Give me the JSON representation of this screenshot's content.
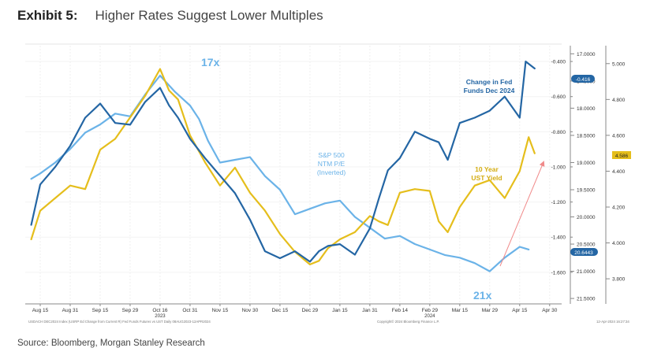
{
  "header": {
    "exhibit": "Exhibit 5:",
    "title": "Higher Rates Suggest Lower Multiples"
  },
  "footer": {
    "source": "Source: Bloomberg, Morgan Stanley Research"
  },
  "chart_data": {
    "type": "line",
    "x_ticks": [
      "Aug 15",
      "Aug 31",
      "Sep 15",
      "Sep 29",
      "Oct 16",
      "Oct 31",
      "Nov 15",
      "Nov 30",
      "Dec 15",
      "Dec 29",
      "Jan 15",
      "Jan 31",
      "Feb 14",
      "Feb 29",
      "Mar 15",
      "Mar 29",
      "Apr 15",
      "Apr 30"
    ],
    "year_labels": [
      {
        "text": "2023",
        "at": "Oct 16"
      },
      {
        "text": "2024",
        "at": "Feb 29"
      }
    ],
    "x_index_range": [
      -0.5,
      17.4
    ],
    "axes": {
      "fed": {
        "label": "Change in Fed Funds Dec 2024",
        "range": [
          -1.78,
          -0.31
        ],
        "ticks": [
          "-0.400",
          "-0.600",
          "-0.800",
          "-1.000",
          "-1.200",
          "-1.400",
          "-1.600"
        ],
        "tick_values": [
          -0.4,
          -0.6,
          -0.8,
          -1.0,
          -1.2,
          -1.4,
          -1.6
        ]
      },
      "pe": {
        "label": "S&P 500 NTM P/E (Inverted)",
        "range": [
          16.85,
          21.6
        ],
        "ticks": [
          "17.0000",
          "17.5000",
          "18.0000",
          "18.5000",
          "19.0000",
          "19.5000",
          "20.0000",
          "20.5000",
          "21.0000",
          "21.5000"
        ],
        "tick_values": [
          17.0,
          17.5,
          18.0,
          18.5,
          19.0,
          19.5,
          20.0,
          20.5,
          21.0,
          21.5
        ]
      },
      "yield": {
        "label": "10 Year UST Yield",
        "range": [
          3.66,
          5.1
        ],
        "ticks": [
          "5.000",
          "4.800",
          "4.600",
          "4.400",
          "4.200",
          "4.000",
          "3.800"
        ],
        "tick_values": [
          5.0,
          4.8,
          4.6,
          4.4,
          4.2,
          4.0,
          3.8
        ]
      }
    },
    "series": [
      {
        "name": "S&P 500 NTM P/E (Inverted)",
        "axis": "pe",
        "color": "#6BB3E8",
        "x": [
          -0.3,
          0,
          0.5,
          1,
          1.5,
          2,
          2.5,
          3,
          3.5,
          4,
          4.5,
          5,
          5.3,
          5.6,
          6,
          6.5,
          7,
          7.5,
          8,
          8.5,
          9,
          9.5,
          10,
          10.5,
          11,
          11.5,
          12,
          12.5,
          13,
          13.5,
          14,
          14.5,
          15,
          15.5,
          16,
          16.3
        ],
        "values": [
          19.3,
          19.2,
          19.0,
          18.75,
          18.45,
          18.3,
          18.1,
          18.15,
          17.75,
          17.4,
          17.7,
          17.95,
          18.2,
          18.6,
          19.0,
          18.95,
          18.9,
          19.25,
          19.5,
          19.95,
          19.85,
          19.75,
          19.7,
          20.0,
          20.2,
          20.4,
          20.35,
          20.5,
          20.6,
          20.7,
          20.75,
          20.85,
          21.0,
          20.75,
          20.55,
          20.6
        ]
      },
      {
        "name": "10 Year UST Yield",
        "axis": "yield",
        "color": "#E5BE1C",
        "x": [
          -0.3,
          0,
          0.5,
          1,
          1.5,
          2,
          2.5,
          3,
          3.5,
          4,
          4.3,
          4.6,
          5,
          5.5,
          6,
          6.5,
          7,
          7.5,
          8,
          8.5,
          9,
          9.3,
          9.6,
          10,
          10.5,
          11,
          11.3,
          11.6,
          12,
          12.5,
          13,
          13.3,
          13.6,
          14,
          14.5,
          15,
          15.5,
          16,
          16.3,
          16.5
        ],
        "values": [
          4.02,
          4.18,
          4.25,
          4.32,
          4.3,
          4.52,
          4.58,
          4.7,
          4.82,
          4.97,
          4.85,
          4.8,
          4.6,
          4.45,
          4.32,
          4.42,
          4.28,
          4.18,
          4.05,
          3.95,
          3.88,
          3.9,
          3.97,
          4.02,
          4.06,
          4.15,
          4.12,
          4.1,
          4.28,
          4.3,
          4.29,
          4.12,
          4.06,
          4.2,
          4.32,
          4.35,
          4.25,
          4.4,
          4.59,
          4.5
        ]
      },
      {
        "name": "Change in Fed Funds Dec 2024",
        "axis": "fed",
        "color": "#2466A4",
        "x": [
          -0.3,
          0,
          0.5,
          1,
          1.5,
          2,
          2.5,
          3,
          3.5,
          4,
          4.3,
          4.6,
          5,
          5.5,
          6,
          6.5,
          7,
          7.5,
          8,
          8.5,
          9,
          9.3,
          9.6,
          10,
          10.5,
          11,
          11.3,
          11.6,
          12,
          12.5,
          13,
          13.3,
          13.6,
          14,
          14.5,
          15,
          15.5,
          16,
          16.2,
          16.5
        ],
        "values": [
          -1.33,
          -1.1,
          -1.0,
          -0.88,
          -0.72,
          -0.64,
          -0.75,
          -0.76,
          -0.63,
          -0.55,
          -0.65,
          -0.72,
          -0.84,
          -0.95,
          -1.05,
          -1.15,
          -1.3,
          -1.48,
          -1.52,
          -1.48,
          -1.54,
          -1.48,
          -1.45,
          -1.44,
          -1.5,
          -1.35,
          -1.18,
          -1.02,
          -0.95,
          -0.8,
          -0.84,
          -0.86,
          -0.96,
          -0.75,
          -0.72,
          -0.68,
          -0.6,
          -0.72,
          -0.4,
          -0.44
        ]
      }
    ],
    "annotations": {
      "pe_high": "17x",
      "pe_low": "21x",
      "fed_label_line1": "Change in Fed",
      "fed_label_line2": "Funds Dec 2024",
      "pe_label_line1": "S&P 500",
      "pe_label_line2": "NTM P/E",
      "pe_label_line3": "(Inverted)",
      "yield_label_line1": "10 Year",
      "yield_label_line2": "UST Yield"
    },
    "last_values": {
      "fed": "-0.416",
      "pe": "20.6443",
      "yield": "4.586"
    },
    "fine_print": {
      "left": "USDACH DEC2024 Index (USRP Ed Change from Current R) Fed Funds Futures vs UST Daily 08AUG2023-12APR2024",
      "center": "Copyright© 2024 Bloomberg Finance L.P.",
      "right": "12-Apr-2024 16:27:34"
    },
    "colors": {
      "fed": "#2466A4",
      "pe": "#6BB3E8",
      "yield": "#E5BE1C",
      "arrow": "#F08A8A"
    }
  }
}
